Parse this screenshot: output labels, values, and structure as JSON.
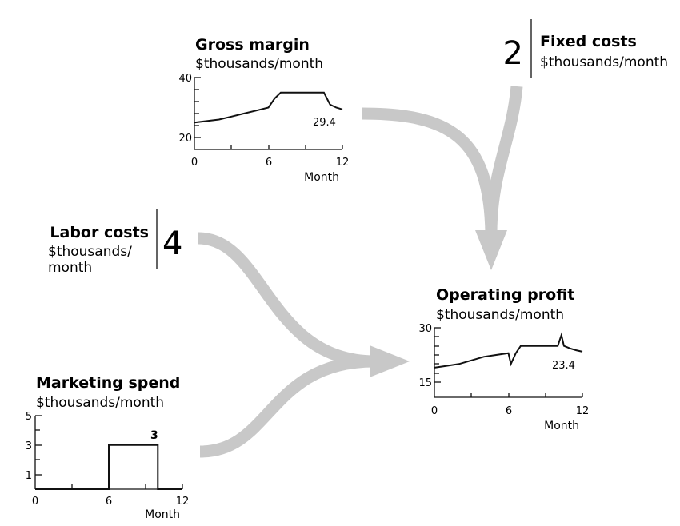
{
  "colors": {
    "arrow": "#c8c8c8",
    "ink": "#111111"
  },
  "gross_margin": {
    "title": "Gross margin",
    "unit": "$thousands/month",
    "y_ticks": [
      "40",
      "20"
    ],
    "x_ticks": [
      "0",
      "6",
      "12"
    ],
    "xlabel": "Month",
    "end_value": "29.4"
  },
  "fixed_costs": {
    "value": "2",
    "title": "Fixed costs",
    "unit": "$thousands/month"
  },
  "labor_costs": {
    "title": "Labor costs",
    "unit_line1": "$thousands/",
    "unit_line2": "month",
    "value": "4"
  },
  "operating_profit": {
    "title": "Operating profit",
    "unit": "$thousands/month",
    "y_ticks": [
      "30",
      "15"
    ],
    "x_ticks": [
      "0",
      "6",
      "12"
    ],
    "xlabel": "Month",
    "end_value": "23.4"
  },
  "marketing_spend": {
    "title": "Marketing spend",
    "unit": "$thousands/month",
    "y_ticks": [
      "5",
      "3",
      "1"
    ],
    "x_ticks": [
      "0",
      "6",
      "12"
    ],
    "xlabel": "Month",
    "step_value": "3"
  },
  "chart_data": [
    {
      "type": "line",
      "title": "Gross margin",
      "ylabel": "$thousands/month",
      "xlabel": "Month",
      "xlim": [
        0,
        12
      ],
      "ylim": [
        20,
        40
      ],
      "x": [
        0,
        1,
        2,
        3,
        4,
        5,
        6,
        6.5,
        7,
        8,
        9,
        10,
        10.5,
        11,
        11.5,
        12
      ],
      "y": [
        25,
        25.5,
        26,
        27,
        28,
        29,
        30,
        33,
        35,
        35,
        35,
        35,
        35,
        31,
        30,
        29.4
      ],
      "annotation": "29.4"
    },
    {
      "type": "line",
      "title": "Operating profit",
      "ylabel": "$thousands/month",
      "xlabel": "Month",
      "xlim": [
        0,
        12
      ],
      "ylim": [
        15,
        30
      ],
      "x": [
        0,
        1,
        2,
        3,
        4,
        5,
        6,
        6.2,
        6.6,
        7,
        8,
        9,
        10,
        10.3,
        10.5,
        11,
        11.5,
        12
      ],
      "y": [
        19,
        19.5,
        20,
        21,
        22,
        22.5,
        23,
        20,
        23,
        25,
        25,
        25,
        25,
        28,
        25,
        24.3,
        23.8,
        23.4
      ],
      "annotation": "23.4"
    },
    {
      "type": "line",
      "title": "Marketing spend",
      "ylabel": "$thousands/month",
      "xlabel": "Month",
      "xlim": [
        0,
        12
      ],
      "ylim": [
        0,
        5
      ],
      "x": [
        0,
        6,
        6,
        10,
        10,
        12
      ],
      "y": [
        0,
        0,
        3,
        3,
        0,
        0
      ],
      "annotation": "3"
    }
  ]
}
